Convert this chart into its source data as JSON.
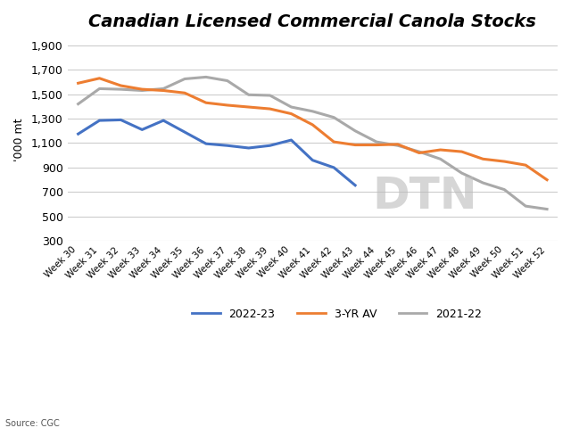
{
  "title": "Canadian Licensed Commercial Canola Stocks",
  "ylabel": "'000 mt",
  "source": "Source: CGC",
  "x_labels": [
    "Week 30",
    "Week 31",
    "Week 32",
    "Week 33",
    "Week 34",
    "Week 35",
    "Week 36",
    "Week 37",
    "Week 38",
    "Week 39",
    "Week 40",
    "Week 41",
    "Week 42",
    "Week 43",
    "Week 44",
    "Week 45",
    "Week 46",
    "Week 47",
    "Week 48",
    "Week 49",
    "Week 50",
    "Week 51",
    "Week 52"
  ],
  "series_2022_23": [
    1175,
    1285,
    1290,
    1210,
    1285,
    null,
    1095,
    1080,
    1060,
    1080,
    1125,
    960,
    900,
    755,
    null,
    null,
    null,
    null,
    null,
    null,
    null,
    null,
    null
  ],
  "series_3yr_av": [
    1590,
    1630,
    1570,
    1540,
    1530,
    1510,
    1430,
    1410,
    1395,
    1380,
    1340,
    1250,
    1110,
    1085,
    1085,
    1090,
    1020,
    1045,
    1030,
    970,
    950,
    920,
    800
  ],
  "series_2021_22": [
    1420,
    1545,
    1540,
    1530,
    1545,
    1625,
    1640,
    1610,
    1495,
    1490,
    1395,
    1360,
    1310,
    1200,
    1110,
    1080,
    1030,
    970,
    855,
    775,
    720,
    585,
    560
  ],
  "color_2022_23": "#4472C4",
  "color_3yr_av": "#ED7D31",
  "color_2021_22": "#A9A9A9",
  "ylim": [
    300,
    1950
  ],
  "yticks": [
    300,
    500,
    700,
    900,
    1100,
    1300,
    1500,
    1700,
    1900
  ],
  "ytick_labels": [
    "300",
    "500",
    "700",
    "900",
    "1,100",
    "1,300",
    "1,500",
    "1,700",
    "1,900"
  ],
  "background_color": "#ffffff",
  "grid_color": "#cccccc",
  "linewidth": 2.2,
  "legend_labels": [
    "2022-23",
    "3-YR AV",
    "2021-22"
  ],
  "watermark": "DTN",
  "watermark_color": "#bbbbbb"
}
